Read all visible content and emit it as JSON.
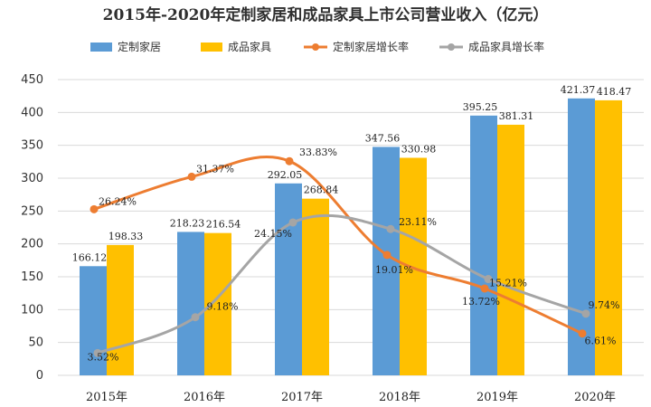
{
  "chart_data": {
    "type": "bar",
    "title": "2015年-2020年定制家居和成品家具上市公司营业收入（亿元）",
    "categories": [
      "2015年",
      "2016年",
      "2017年",
      "2018年",
      "2019年",
      "2020年"
    ],
    "ylim": [
      0,
      450
    ],
    "yticks": [
      0,
      50,
      100,
      150,
      200,
      250,
      300,
      350,
      400,
      450
    ],
    "grid": true,
    "legend_position": "top",
    "series": [
      {
        "name": "定制家居",
        "type": "bar",
        "color": "#5b9bd5",
        "values": [
          166.12,
          218.23,
          292.05,
          347.56,
          395.25,
          421.37
        ],
        "labels": [
          "166.12",
          "218.23",
          "292.05",
          "347.56",
          "395.25",
          "421.37"
        ]
      },
      {
        "name": "成品家具",
        "type": "bar",
        "color": "#ffc000",
        "values": [
          198.33,
          216.54,
          268.84,
          330.98,
          381.31,
          418.47
        ],
        "labels": [
          "198.33",
          "216.54",
          "268.84",
          "330.98",
          "381.31",
          "418.47"
        ]
      }
    ],
    "rate_series": [
      {
        "name": "定制家居增长率",
        "type": "line",
        "color": "#ed7d31",
        "values": [
          26.24,
          31.37,
          33.83,
          19.01,
          13.72,
          6.61
        ],
        "labels": [
          "26.24%",
          "31.37%",
          "33.83%",
          "19.01%",
          "13.72%",
          "6.61%"
        ]
      },
      {
        "name": "成品家具增长率",
        "type": "line",
        "color": "#a5a5a5",
        "values": [
          3.52,
          9.18,
          24.15,
          23.11,
          15.21,
          9.74
        ],
        "labels": [
          "3.52%",
          "9.18%",
          "24.15%",
          "23.11%",
          "15.21%",
          "9.74%"
        ]
      }
    ]
  }
}
